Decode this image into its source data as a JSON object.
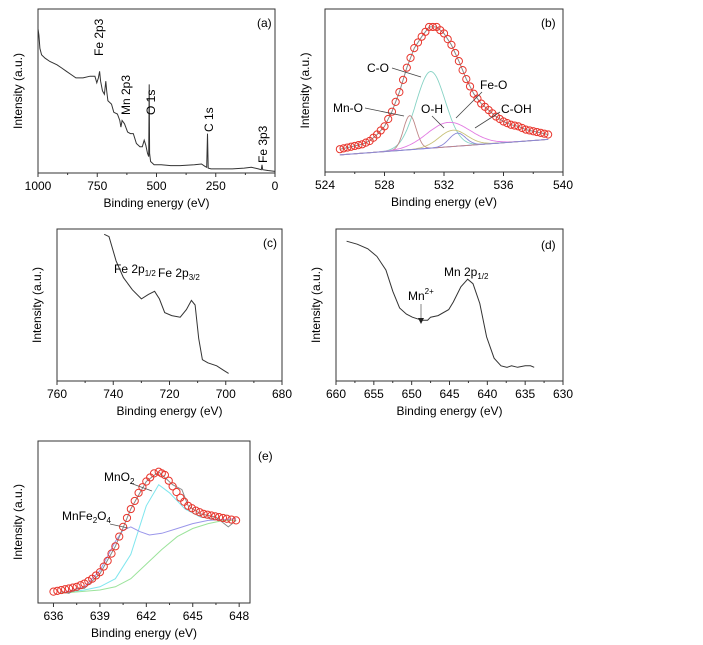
{
  "chart_data": [
    {
      "panel": "(a)",
      "type": "line",
      "xlabel": "Binding energy (eV)",
      "ylabel": "Intensity (a.u.)",
      "xlim": [
        1000,
        0
      ],
      "ylim": [
        0,
        1
      ],
      "xticks": [
        "1000",
        "750",
        "500",
        "250",
        "0"
      ],
      "xtick_values": [
        1000,
        750,
        500,
        250,
        0
      ],
      "minor_step": 125,
      "annotations": [
        "Fe 2p3",
        "Mn 2p3",
        "O 1s",
        "C 1s",
        "Fe 3p3"
      ],
      "series": [
        {
          "color": "#333333",
          "points": [
            [
              1000,
              0.88
            ],
            [
              996,
              0.84
            ],
            [
              992,
              0.76
            ],
            [
              985,
              0.72
            ],
            [
              970,
              0.7
            ],
            [
              950,
              0.68
            ],
            [
              920,
              0.66
            ],
            [
              900,
              0.64
            ],
            [
              880,
              0.62
            ],
            [
              860,
              0.6
            ],
            [
              840,
              0.58
            ],
            [
              810,
              0.58
            ],
            [
              780,
              0.59
            ],
            [
              760,
              0.59
            ],
            [
              752,
              0.55
            ],
            [
              745,
              0.58
            ],
            [
              740,
              0.62
            ],
            [
              736,
              0.56
            ],
            [
              728,
              0.5
            ],
            [
              720,
              0.48
            ],
            [
              714,
              0.56
            ],
            [
              710,
              0.5
            ],
            [
              705,
              0.44
            ],
            [
              690,
              0.42
            ],
            [
              680,
              0.37
            ],
            [
              665,
              0.36
            ],
            [
              655,
              0.32
            ],
            [
              650,
              0.28
            ],
            [
              645,
              0.32
            ],
            [
              635,
              0.3
            ],
            [
              622,
              0.25
            ],
            [
              610,
              0.24
            ],
            [
              598,
              0.24
            ],
            [
              585,
              0.18
            ],
            [
              570,
              0.16
            ],
            [
              560,
              0.16
            ],
            [
              552,
              0.2
            ],
            [
              545,
              0.17
            ],
            [
              538,
              0.12
            ],
            [
              533,
              0.1
            ],
            [
              531,
              0.54
            ],
            [
              529,
              0.12
            ],
            [
              525,
              0.07
            ],
            [
              510,
              0.05
            ],
            [
              480,
              0.05
            ],
            [
              440,
              0.045
            ],
            [
              400,
              0.045
            ],
            [
              340,
              0.05
            ],
            [
              310,
              0.055
            ],
            [
              295,
              0.04
            ],
            [
              288,
              0.035
            ],
            [
              285,
              0.24
            ],
            [
              282,
              0.03
            ],
            [
              270,
              0.025
            ],
            [
              230,
              0.025
            ],
            [
              180,
              0.025
            ],
            [
              130,
              0.03
            ],
            [
              100,
              0.035
            ],
            [
              70,
              0.025
            ],
            [
              58,
              0.02
            ],
            [
              55,
              0.05
            ],
            [
              52,
              0.02
            ],
            [
              30,
              0.015
            ],
            [
              0,
              0.01
            ]
          ]
        }
      ]
    },
    {
      "panel": "(b)",
      "type": "line",
      "xlabel": "Binding energy (eV)",
      "ylabel": "Intensity (a.u.)",
      "xlim": [
        524,
        540
      ],
      "ylim": [
        0,
        1
      ],
      "xticks": [
        "524",
        "528",
        "532",
        "536",
        "540"
      ],
      "xtick_values": [
        524,
        528,
        532,
        536,
        540
      ],
      "minor_step": 2,
      "experimental": {
        "color": "#e8352c",
        "x": [
          525,
          525.5,
          526,
          526.5,
          527,
          527.5,
          528,
          528.5,
          529,
          529.5,
          530,
          530.5,
          531,
          531.5,
          532,
          532.5,
          533,
          533.5,
          534,
          534.5,
          535,
          535.5,
          536,
          536.5,
          537,
          537.5,
          538,
          538.5,
          539
        ],
        "y": [
          0.14,
          0.15,
          0.16,
          0.17,
          0.19,
          0.23,
          0.28,
          0.37,
          0.49,
          0.64,
          0.76,
          0.83,
          0.89,
          0.89,
          0.85,
          0.78,
          0.68,
          0.57,
          0.48,
          0.42,
          0.38,
          0.34,
          0.31,
          0.29,
          0.28,
          0.26,
          0.25,
          0.24,
          0.23
        ]
      },
      "fit_color": "#8a8a8a",
      "baseline": {
        "color": "#6a6ae0",
        "y_start": 0.105,
        "y_end": 0.2
      },
      "components": [
        {
          "name": "C-O",
          "center": 531.1,
          "height": 0.47,
          "fwhm": 2.3,
          "color": "#86d2c4"
        },
        {
          "name": "Mn-O",
          "center": 529.7,
          "height": 0.21,
          "fwhm": 1.0,
          "color": "#c08888"
        },
        {
          "name": "Fe-O",
          "center": 532.3,
          "height": 0.15,
          "fwhm": 3.4,
          "color": "#e27ae2"
        },
        {
          "name": "O-H",
          "center": 532.6,
          "height": 0.1,
          "fwhm": 2.2,
          "color": "#c9c27a"
        },
        {
          "name": "C-OH",
          "center": 532.9,
          "height": 0.08,
          "fwhm": 1.3,
          "color": "#8a86d6"
        }
      ]
    },
    {
      "panel": "(c)",
      "type": "line",
      "xlabel": "Binding energy (eV)",
      "ylabel": "Intensity (a.u.)",
      "xlim": [
        760,
        680
      ],
      "ylim": [
        0,
        1
      ],
      "xticks": [
        "760",
        "740",
        "720",
        "700",
        "680"
      ],
      "xtick_values": [
        760,
        740,
        720,
        700,
        680
      ],
      "minor_step": 10,
      "annotations": [
        {
          "main": "Fe 2p",
          "sub": "1/2"
        },
        {
          "main": "Fe 2p",
          "sub": "3/2"
        }
      ],
      "series": [
        {
          "color": "#333333",
          "points": [
            [
              743.2,
              0.965
            ],
            [
              741.5,
              0.95
            ],
            [
              739,
              0.79
            ],
            [
              736.4,
              0.68
            ],
            [
              733.2,
              0.6
            ],
            [
              730,
              0.54
            ],
            [
              727.5,
              0.57
            ],
            [
              725.3,
              0.59
            ],
            [
              723.6,
              0.54
            ],
            [
              721.7,
              0.45
            ],
            [
              719.2,
              0.43
            ],
            [
              716.2,
              0.42
            ],
            [
              714,
              0.47
            ],
            [
              712.2,
              0.53
            ],
            [
              710.9,
              0.5
            ],
            [
              709.6,
              0.28
            ],
            [
              708.3,
              0.14
            ],
            [
              706.4,
              0.12
            ],
            [
              703.2,
              0.1
            ],
            [
              700.7,
              0.07
            ],
            [
              699,
              0.05
            ]
          ]
        }
      ]
    },
    {
      "panel": "(d)",
      "type": "line",
      "xlabel": "Binding energy (eV)",
      "ylabel": "Intensity (a.u.)",
      "xlim": [
        660,
        630
      ],
      "ylim": [
        0,
        1
      ],
      "xticks": [
        "660",
        "655",
        "650",
        "645",
        "640",
        "635",
        "630"
      ],
      "xtick_values": [
        660,
        655,
        650,
        645,
        640,
        635,
        630
      ],
      "minor_step": 2.5,
      "annotations": [
        {
          "main": "Mn",
          "sup": "2+"
        },
        {
          "main": "Mn 2p",
          "sub": "1/2"
        }
      ],
      "series": [
        {
          "color": "#333333",
          "points": [
            [
              658.6,
              0.92
            ],
            [
              657.2,
              0.9
            ],
            [
              655.8,
              0.87
            ],
            [
              654.6,
              0.82
            ],
            [
              653.4,
              0.73
            ],
            [
              652.5,
              0.59
            ],
            [
              651.6,
              0.48
            ],
            [
              650.7,
              0.44
            ],
            [
              649.9,
              0.42
            ],
            [
              649.3,
              0.41
            ],
            [
              648.6,
              0.4
            ],
            [
              647.9,
              0.4
            ],
            [
              647.5,
              0.42
            ],
            [
              646.5,
              0.43
            ],
            [
              645.1,
              0.47
            ],
            [
              644.5,
              0.52
            ],
            [
              643.5,
              0.62
            ],
            [
              642.6,
              0.67
            ],
            [
              641.9,
              0.64
            ],
            [
              641,
              0.51
            ],
            [
              640.1,
              0.29
            ],
            [
              639.1,
              0.15
            ],
            [
              638.2,
              0.1
            ],
            [
              637.4,
              0.09
            ],
            [
              636.8,
              0.1
            ],
            [
              636,
              0.09
            ],
            [
              635,
              0.1
            ],
            [
              634.3,
              0.1
            ],
            [
              633.8,
              0.09
            ]
          ]
        }
      ]
    },
    {
      "panel": "(e)",
      "type": "line",
      "xlabel": "Binding energy (eV)",
      "ylabel": "Intensity (a.u.)",
      "xlim": [
        635,
        648.7
      ],
      "ylim": [
        0,
        1
      ],
      "xticks": [
        "636",
        "639",
        "642",
        "645",
        "648"
      ],
      "xtick_values": [
        636,
        639,
        642,
        645,
        648
      ],
      "minor_step": 1.5,
      "annotations": [
        {
          "parts": [
            "MnO",
            "2"
          ]
        },
        {
          "parts": [
            "MnFe",
            "2",
            "O",
            "4"
          ]
        }
      ],
      "experimental": {
        "color": "#e8352c",
        "points": [
          [
            636,
            0.07
          ],
          [
            636.5,
            0.08
          ],
          [
            637,
            0.09
          ],
          [
            637.5,
            0.1
          ],
          [
            638,
            0.12
          ],
          [
            638.5,
            0.15
          ],
          [
            639,
            0.19
          ],
          [
            639.5,
            0.26
          ],
          [
            640,
            0.35
          ],
          [
            640.5,
            0.47
          ],
          [
            641,
            0.58
          ],
          [
            641.5,
            0.68
          ],
          [
            642,
            0.75
          ],
          [
            642.5,
            0.8
          ],
          [
            642.8,
            0.81
          ],
          [
            643.2,
            0.79
          ],
          [
            643.7,
            0.72
          ],
          [
            644.2,
            0.65
          ],
          [
            644.7,
            0.6
          ],
          [
            645.2,
            0.57
          ],
          [
            645.7,
            0.55
          ],
          [
            646.2,
            0.54
          ],
          [
            646.7,
            0.53
          ],
          [
            647.2,
            0.52
          ],
          [
            647.8,
            0.51
          ]
        ]
      },
      "series": [
        {
          "name": "MnO2",
          "color": "#7fe6ee",
          "points": [
            [
              636.5,
              0.06
            ],
            [
              638,
              0.08
            ],
            [
              639,
              0.1
            ],
            [
              640,
              0.15
            ],
            [
              641,
              0.3
            ],
            [
              642,
              0.6
            ],
            [
              642.8,
              0.73
            ],
            [
              643.5,
              0.68
            ],
            [
              644.5,
              0.58
            ],
            [
              645.5,
              0.53
            ],
            [
              647,
              0.51
            ],
            [
              647.8,
              0.51
            ]
          ]
        },
        {
          "name": "MnFe2O4",
          "color": "#9a96ea",
          "points": [
            [
              636.5,
              0.06
            ],
            [
              638,
              0.1
            ],
            [
              639,
              0.2
            ],
            [
              640,
              0.38
            ],
            [
              640.5,
              0.45
            ],
            [
              641,
              0.47
            ],
            [
              641.6,
              0.44
            ],
            [
              642.2,
              0.42
            ],
            [
              643,
              0.43
            ],
            [
              644,
              0.46
            ],
            [
              645,
              0.49
            ],
            [
              646,
              0.51
            ],
            [
              647.8,
              0.52
            ]
          ]
        },
        {
          "color": "#9be39b",
          "points": [
            [
              636.5,
              0.06
            ],
            [
              639,
              0.08
            ],
            [
              640,
              0.1
            ],
            [
              641,
              0.15
            ],
            [
              642,
              0.24
            ],
            [
              643,
              0.33
            ],
            [
              644,
              0.41
            ],
            [
              645,
              0.46
            ],
            [
              646,
              0.49
            ],
            [
              647,
              0.51
            ],
            [
              647.8,
              0.51
            ]
          ]
        },
        {
          "color": "#8a8a8a",
          "points": [
            [
              636.5,
              0.07
            ],
            [
              637,
              0.06
            ],
            [
              637.5,
              0.09
            ],
            [
              638,
              0.09
            ],
            [
              639,
              0.18
            ],
            [
              640,
              0.35
            ],
            [
              641,
              0.58
            ],
            [
              642,
              0.75
            ],
            [
              642.8,
              0.81
            ],
            [
              643.7,
              0.73
            ],
            [
              644.3,
              0.7
            ],
            [
              644.7,
              0.6
            ],
            [
              645.5,
              0.55
            ],
            [
              646.5,
              0.53
            ],
            [
              647.3,
              0.47
            ],
            [
              647.8,
              0.51
            ]
          ]
        }
      ]
    }
  ]
}
